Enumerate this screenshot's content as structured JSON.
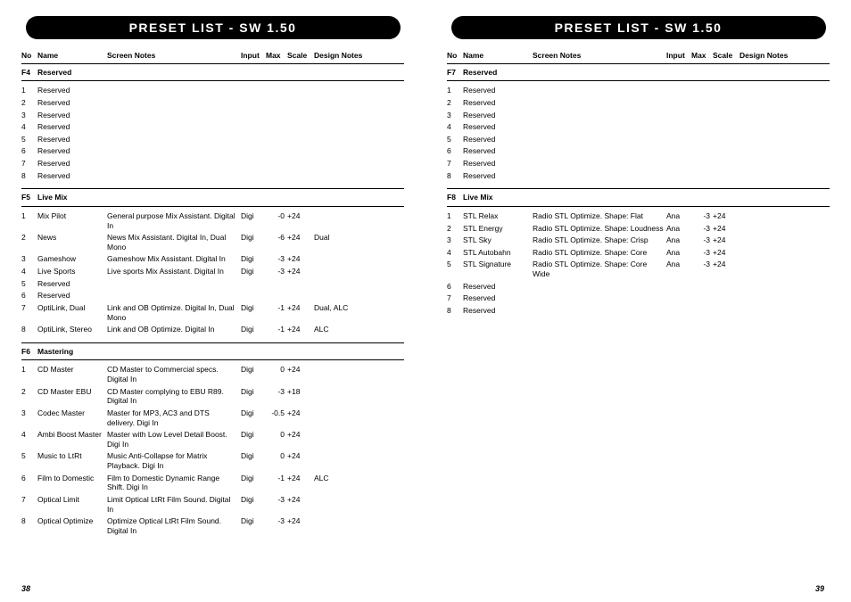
{
  "header_title": "PRESET LIST - SW 1.50",
  "columns": {
    "no": "No",
    "name": "Name",
    "screen_notes": "Screen Notes",
    "input": "Input",
    "max": "Max",
    "scale": "Scale",
    "design_notes": "Design Notes"
  },
  "page_left_num": "38",
  "page_right_num": "39",
  "left": {
    "sections": [
      {
        "group_no": "F4",
        "group_name": "Reserved",
        "rows": [
          {
            "no": "1",
            "name": "Reserved"
          },
          {
            "no": "2",
            "name": "Reserved"
          },
          {
            "no": "3",
            "name": "Reserved"
          },
          {
            "no": "4",
            "name": "Reserved"
          },
          {
            "no": "5",
            "name": "Reserved"
          },
          {
            "no": "6",
            "name": "Reserved"
          },
          {
            "no": "7",
            "name": "Reserved"
          },
          {
            "no": "8",
            "name": "Reserved"
          }
        ]
      },
      {
        "group_no": "F5",
        "group_name": "Live Mix",
        "rows": [
          {
            "no": "1",
            "name": "Mix Pilot",
            "notes": "General purpose Mix Assistant. Digital In",
            "input": "Digi",
            "max": "-0",
            "scale": "+24"
          },
          {
            "no": "2",
            "name": "News",
            "notes": "News Mix Assistant. Digital In, Dual Mono",
            "input": "Digi",
            "max": "-6",
            "scale": "+24",
            "design": "Dual"
          },
          {
            "no": "3",
            "name": "Gameshow",
            "notes": "Gameshow Mix Assistant. Digital In",
            "input": "Digi",
            "max": "-3",
            "scale": "+24"
          },
          {
            "no": "4",
            "name": "Live Sports",
            "notes": "Live sports Mix Assistant. Digital In",
            "input": "Digi",
            "max": "-3",
            "scale": "+24"
          },
          {
            "no": "5",
            "name": "Reserved"
          },
          {
            "no": "6",
            "name": "Reserved"
          },
          {
            "no": "7",
            "name": "OptiLink, Dual",
            "notes": "Link and OB Optimize. Digital In, Dual Mono",
            "input": "Digi",
            "max": "-1",
            "scale": "+24",
            "design": "Dual, ALC"
          },
          {
            "no": "8",
            "name": "OptiLink, Stereo",
            "notes": "Link and OB Optimize. Digital In",
            "input": "Digi",
            "max": "-1",
            "scale": "+24",
            "design": "ALC"
          }
        ]
      },
      {
        "group_no": "F6",
        "group_name": "Mastering",
        "rows": [
          {
            "no": "1",
            "name": "CD Master",
            "notes": "CD Master to Commercial specs. Digital In",
            "input": "Digi",
            "max": "0",
            "scale": "+24"
          },
          {
            "no": "2",
            "name": "CD Master EBU",
            "notes": "CD Master complying to EBU R89. Digital In",
            "input": "Digi",
            "max": "-3",
            "scale": "+18"
          },
          {
            "no": "3",
            "name": "Codec Master",
            "notes": "Master for MP3, AC3 and DTS delivery. Digi In",
            "input": "Digi",
            "max": "-0.5",
            "scale": "+24"
          },
          {
            "no": "4",
            "name": "Ambi Boost Master",
            "notes": "Master with Low Level Detail Boost. Digi In",
            "input": "Digi",
            "max": "0",
            "scale": "+24"
          },
          {
            "no": "5",
            "name": "Music to LtRt",
            "notes": "Music Anti-Collapse for Matrix Playback. Digi In",
            "input": "Digi",
            "max": "0",
            "scale": "+24"
          },
          {
            "no": "6",
            "name": "Film to Domestic",
            "notes": "Film to Domestic Dynamic Range Shift. Digi In",
            "input": "Digi",
            "max": "-1",
            "scale": "+24",
            "design": "ALC"
          },
          {
            "no": "7",
            "name": "Optical Limit",
            "notes": "Limit Optical LtRt  Film Sound. Digital In",
            "input": "Digi",
            "max": "-3",
            "scale": "+24"
          },
          {
            "no": "8",
            "name": "Optical Optimize",
            "notes": "Optimize Optical LtRt  Film Sound. Digital In",
            "input": "Digi",
            "max": "-3",
            "scale": "+24"
          }
        ]
      }
    ]
  },
  "right": {
    "sections": [
      {
        "group_no": "F7",
        "group_name": "Reserved",
        "rows": [
          {
            "no": "1",
            "name": "Reserved"
          },
          {
            "no": "2",
            "name": "Reserved"
          },
          {
            "no": "3",
            "name": "Reserved"
          },
          {
            "no": "4",
            "name": "Reserved"
          },
          {
            "no": "5",
            "name": "Reserved"
          },
          {
            "no": "6",
            "name": "Reserved"
          },
          {
            "no": "7",
            "name": "Reserved"
          },
          {
            "no": "8",
            "name": "Reserved"
          }
        ]
      },
      {
        "group_no": "F8",
        "group_name": "Live Mix",
        "rows": [
          {
            "no": "1",
            "name": "STL Relax",
            "notes": "Radio STL Optimize. Shape: Flat",
            "input": "Ana",
            "max": "-3",
            "scale": "+24"
          },
          {
            "no": "2",
            "name": "STL Energy",
            "notes": "Radio STL Optimize. Shape: Loudness",
            "input": "Ana",
            "max": "-3",
            "scale": "+24"
          },
          {
            "no": "3",
            "name": "STL Sky",
            "notes": "Radio STL Optimize. Shape: Crisp",
            "input": "Ana",
            "max": "-3",
            "scale": "+24"
          },
          {
            "no": "4",
            "name": "STL Autobahn",
            "notes": "Radio STL Optimize. Shape: Core",
            "input": "Ana",
            "max": "-3",
            "scale": "+24"
          },
          {
            "no": "5",
            "name": "STL Signature",
            "notes": "Radio STL Optimize. Shape: Core Wide",
            "input": "Ana",
            "max": "-3",
            "scale": "+24"
          },
          {
            "no": "6",
            "name": "Reserved"
          },
          {
            "no": "7",
            "name": "Reserved"
          },
          {
            "no": "8",
            "name": "Reserved"
          }
        ]
      }
    ]
  }
}
